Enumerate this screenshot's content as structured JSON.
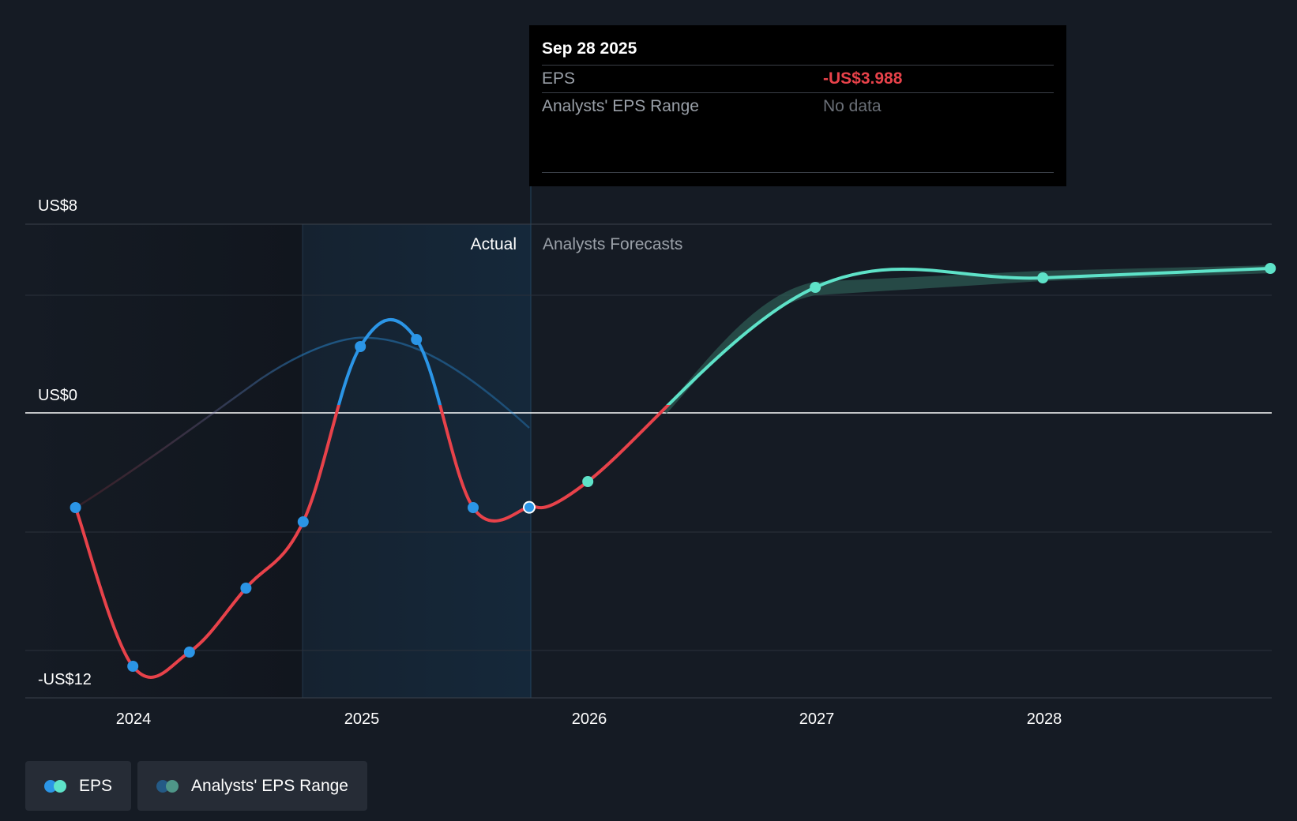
{
  "tooltip": {
    "date": "Sep 28 2025",
    "rows": [
      {
        "label": "EPS",
        "value": "-US$3.988"
      },
      {
        "label": "Analysts' EPS Range",
        "value": "No data"
      }
    ]
  },
  "colors": {
    "background": "#151b24",
    "negative": "#e8424a",
    "positive_actual": "#2b95e6",
    "forecast": "#5ee2c8",
    "range_band": "#2e5c55",
    "actual_highlight": "#15283a"
  },
  "chart_data": {
    "type": "line",
    "y_ticks": [
      {
        "value": 8,
        "label": "US$8"
      },
      {
        "value": 0,
        "label": "US$0"
      },
      {
        "value": -12,
        "label": "-US$12"
      }
    ],
    "x_ticks": [
      "2024",
      "2025",
      "2026",
      "2027",
      "2028"
    ],
    "ylim": [
      -12,
      8
    ],
    "region_labels": {
      "actual": "Actual",
      "forecast": "Analysts Forecasts"
    },
    "series": [
      {
        "name": "EPS",
        "role": "actual",
        "points": [
          {
            "x": "2023-09-30",
            "y": -4.0
          },
          {
            "x": "2023-12-31",
            "y": -10.7
          },
          {
            "x": "2024-03-31",
            "y": -10.1
          },
          {
            "x": "2024-06-30",
            "y": -7.4
          },
          {
            "x": "2024-09-30",
            "y": -4.6
          },
          {
            "x": "2024-12-31",
            "y": 2.8
          },
          {
            "x": "2025-03-31",
            "y": 3.1
          },
          {
            "x": "2025-06-30",
            "y": -4.0
          },
          {
            "x": "2025-09-28",
            "y": -3.988
          }
        ]
      },
      {
        "name": "EPS",
        "role": "forecast",
        "points": [
          {
            "x": "2025-09-28",
            "y": -3.988
          },
          {
            "x": "2025-12-31",
            "y": -2.9
          },
          {
            "x": "2026-12-31",
            "y": 5.3
          },
          {
            "x": "2027-12-31",
            "y": 5.7
          },
          {
            "x": "2028-12-31",
            "y": 6.1
          }
        ]
      }
    ],
    "legend": [
      {
        "label": "EPS"
      },
      {
        "label": "Analysts' EPS Range"
      }
    ]
  }
}
